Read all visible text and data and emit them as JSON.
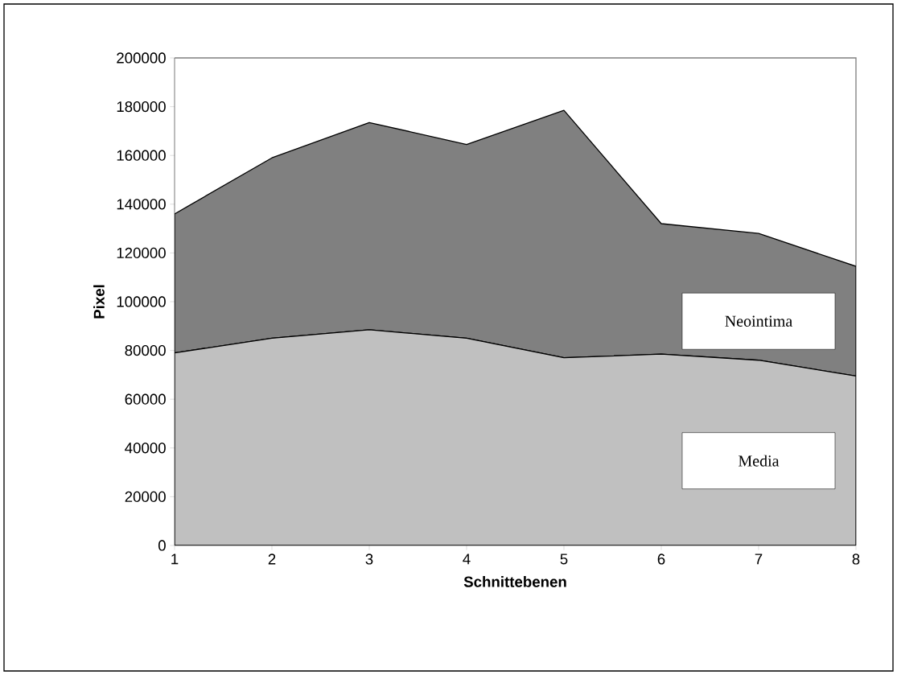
{
  "chart_data": {
    "type": "area",
    "xlabel": "Schnittebenen",
    "ylabel": "Pixel",
    "categories": [
      "1",
      "2",
      "3",
      "4",
      "5",
      "6",
      "7",
      "8"
    ],
    "stacked": true,
    "series": [
      {
        "name": "Media",
        "color": "#c0c0c0",
        "values": [
          79000,
          85000,
          88500,
          85000,
          77000,
          78500,
          76000,
          69500
        ]
      },
      {
        "name": "Neointima",
        "color": "#808080",
        "values": [
          57000,
          74000,
          85000,
          79500,
          101500,
          53500,
          52000,
          45000
        ]
      }
    ],
    "ylim": [
      0,
      200000
    ],
    "yticks": [
      0,
      20000,
      40000,
      60000,
      80000,
      100000,
      120000,
      140000,
      160000,
      180000,
      200000
    ]
  }
}
